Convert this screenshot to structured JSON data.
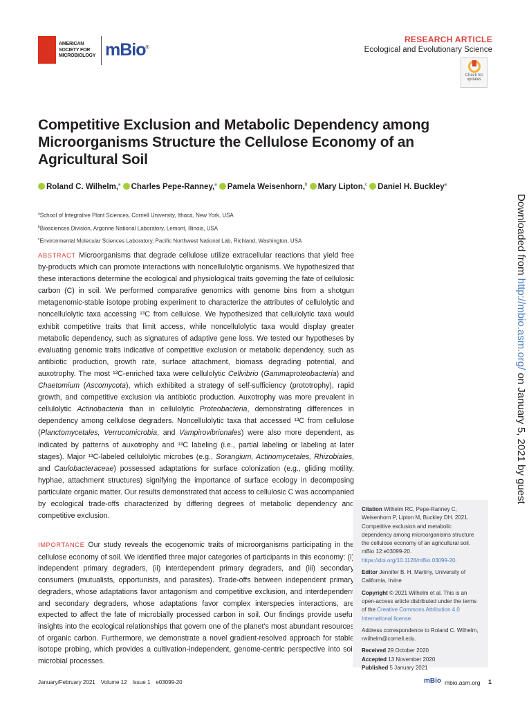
{
  "header": {
    "publisher_logo": "AMERICAN SOCIETY FOR MICROBIOLOGY",
    "journal_logo": "mBio",
    "article_type": "RESEARCH ARTICLE",
    "section": "Ecological and Evolutionary Science",
    "check_updates": "Check for updates"
  },
  "title": "Competitive Exclusion and Metabolic Dependency among Microorganisms Structure the Cellulose Economy of an Agricultural Soil",
  "authors": [
    {
      "name": "Roland C. Wilhelm,",
      "aff": "a"
    },
    {
      "name": "Charles Pepe-Ranney,",
      "aff": "a"
    },
    {
      "name": "Pamela Weisenhorn,",
      "aff": "b"
    },
    {
      "name": "Mary Lipton,",
      "aff": "c"
    },
    {
      "name": "Daniel H. Buckley",
      "aff": "a"
    }
  ],
  "affiliations": [
    {
      "key": "a",
      "text": "School of Integrative Plant Sciences, Cornell University, Ithaca, New York, USA"
    },
    {
      "key": "b",
      "text": "Biosciences Division, Argonne National Laboratory, Lemont, Illinois, USA"
    },
    {
      "key": "c",
      "text": "Environmental Molecular Sciences Laboratory, Pacific Northwest National Lab, Richland, Washington, USA"
    }
  ],
  "abstract": {
    "label": "ABSTRACT",
    "segments": [
      {
        "t": " Microorganisms that degrade cellulose utilize extracellular reactions that yield free by-products which can promote interactions with noncellulolytic organisms. We hypothesized that these interactions determine the ecological and physiological traits governing the fate of cellulosic carbon (C) in soil. We performed comparative genomics with genome bins from a shotgun metagenomic-stable isotope probing experiment to characterize the attributes of cellulolytic and noncellulolytic taxa accessing ¹³C from cellulose. We hypothesized that cellulolytic taxa would exhibit competitive traits that limit access, while noncellulolytic taxa would display greater metabolic dependency, such as signatures of adaptive gene loss. We tested our hypotheses by evaluating genomic traits indicative of competitive exclusion or metabolic dependency, such as antibiotic production, growth rate, surface attachment, biomass degrading potential, and auxotrophy. The most ¹³C-enriched taxa were cellulolytic "
      },
      {
        "t": "Cellvibrio",
        "i": true
      },
      {
        "t": " ("
      },
      {
        "t": "Gammaproteobacteria",
        "i": true
      },
      {
        "t": ") and "
      },
      {
        "t": "Chaetomium",
        "i": true
      },
      {
        "t": " ("
      },
      {
        "t": "Ascomycota",
        "i": true
      },
      {
        "t": "), which exhibited a strategy of self-sufficiency (prototrophy), rapid growth, and competitive exclusion via antibiotic production. Auxotrophy was more prevalent in cellulolytic "
      },
      {
        "t": "Actinobacteria",
        "i": true
      },
      {
        "t": " than in cellulolytic "
      },
      {
        "t": "Proteobacteria",
        "i": true
      },
      {
        "t": ", demonstrating differences in dependency among cellulose degraders. Noncellulolytic taxa that accessed ¹³C from cellulose ("
      },
      {
        "t": "Planctomycetales, Verrucomicrobia",
        "i": true
      },
      {
        "t": ", and "
      },
      {
        "t": "Vampirovibrionales",
        "i": true
      },
      {
        "t": ") were also more dependent, as indicated by patterns of auxotrophy and ¹³C labeling (i.e., partial labeling or labeling at later stages). Major ¹³C-labeled cellulolytic microbes (e.g., "
      },
      {
        "t": "Sorangium, Actinomycetales, Rhizobiales",
        "i": true
      },
      {
        "t": ", and "
      },
      {
        "t": "Caulobacteraceae",
        "i": true
      },
      {
        "t": ") possessed adaptations for surface colonization (e.g., gliding motility, hyphae, attachment structures) signifying the importance of surface ecology in decomposing particulate organic matter. Our results demonstrated that access to cellulosic C was accompanied by ecological trade-offs characterized by differing degrees of metabolic dependency and competitive exclusion."
      }
    ]
  },
  "importance": {
    "label": "IMPORTANCE",
    "segments": [
      {
        "t": " Our study reveals the ecogenomic traits of microorganisms participating in the cellulose economy of soil. We identified three major categories of participants in this economy: (i) independent primary degraders, (ii) interdependent primary degraders, and (iii) secondary consumers (mutualists, opportunists, and parasites). Trade-offs between independent primary degraders, whose adaptations favor antagonism and competitive exclusion, and interdependent and secondary degraders, whose adaptations favor complex interspecies interactions, are expected to affect the fate of microbially processed carbon in soil. Our findings provide useful insights into the ecological relationships that govern one of the planet's most abundant resources of organic carbon. Furthermore, we demonstrate a novel gradient-resolved approach for stable isotope probing, which provides a cultivation-independent, genome-centric perspective into soil microbial processes."
      }
    ]
  },
  "sidebar": {
    "citation_label": "Citation",
    "citation_text": " Wilhelm RC, Pepe-Ranney C, Weisenhorn P, Lipton M, Buckley DH. 2021. Competitive exclusion and metabolic dependency among microorganisms structure the cellulose economy of an agricultural soil. mBio 12:e03099-20. ",
    "citation_doi": "https://doi.org/10.1128/mBio.03099-20",
    "citation_end": ".",
    "editor_label": "Editor",
    "editor_text": " Jennifer B. H. Martiny, University of California, Irvine",
    "copyright_label": "Copyright",
    "copyright_text": " © 2021 Wilhelm et al. This is an open-access article distributed under the terms of the ",
    "copyright_link": "Creative Commons Attribution 4.0 International license",
    "copyright_end": ".",
    "correspondence": "Address correspondence to Roland C. Wilhelm, rwilhelm@cornell.edu.",
    "received_label": "Received",
    "received": " 29 October 2020",
    "accepted_label": "Accepted",
    "accepted": " 13 November 2020",
    "published_label": "Published",
    "published": " 5 January 2021"
  },
  "watermark": {
    "prefix": "Downloaded from ",
    "link": "http://mbio.asm.org/",
    "suffix": " on January 5, 2021 by guest"
  },
  "footer": {
    "issue_date": "January/February 2021",
    "volume": "Volume 12",
    "issue": "Issue 1",
    "article_id": "e03099-20",
    "logo": "mBio",
    "site": "mbio.asm.org",
    "page": "1"
  },
  "colors": {
    "accent": "#d9423a",
    "link": "#4a7cc0",
    "orcid": "#a6ce39",
    "journal": "#2b4a9c"
  }
}
